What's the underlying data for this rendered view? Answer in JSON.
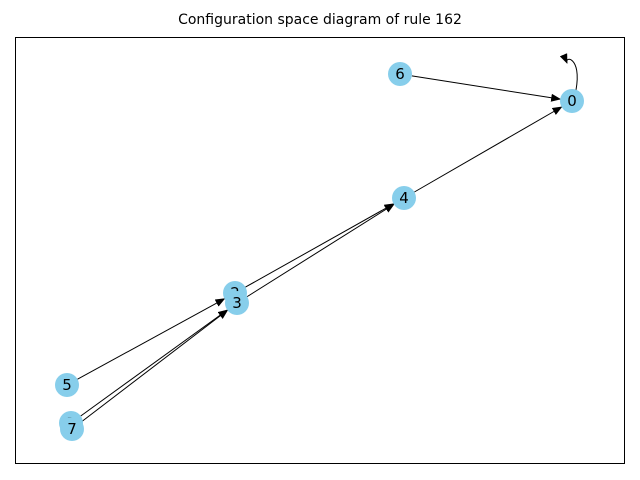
{
  "title": "Configuration space diagram of rule 162",
  "node_color": "#87ceeb",
  "edge_color": "#000000",
  "nodes": [
    {
      "id": "0",
      "label": "0"
    },
    {
      "id": "1",
      "label": "1"
    },
    {
      "id": "2",
      "label": "2"
    },
    {
      "id": "3",
      "label": "3"
    },
    {
      "id": "4",
      "label": "4"
    },
    {
      "id": "5",
      "label": "5"
    },
    {
      "id": "6",
      "label": "6"
    },
    {
      "id": "7",
      "label": "7"
    }
  ],
  "edges": [
    {
      "from": "0",
      "to": "0"
    },
    {
      "from": "6",
      "to": "0"
    },
    {
      "from": "4",
      "to": "0"
    },
    {
      "from": "2",
      "to": "4"
    },
    {
      "from": "3",
      "to": "4"
    },
    {
      "from": "5",
      "to": "2"
    },
    {
      "from": "1",
      "to": "3"
    },
    {
      "from": "7",
      "to": "3"
    }
  ]
}
